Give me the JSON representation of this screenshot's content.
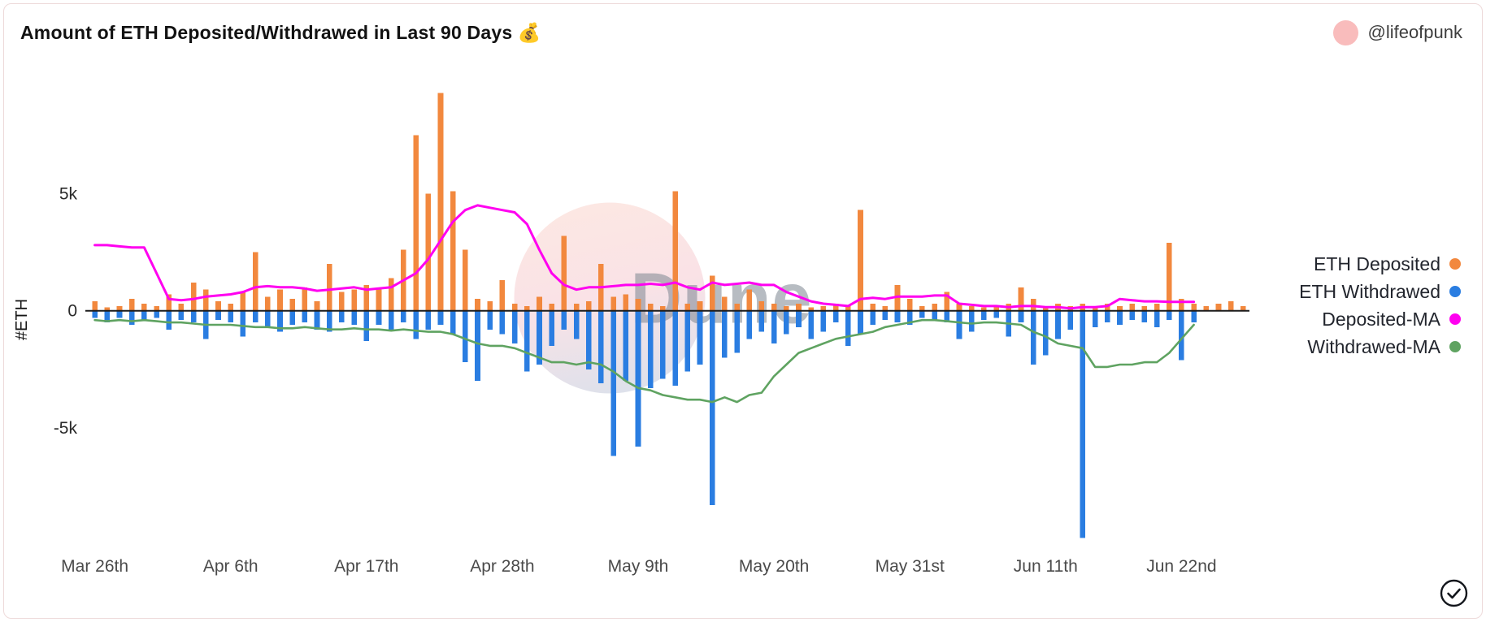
{
  "header": {
    "title": "Amount of ETH Deposited/Withdrawed in Last 90 Days 💰",
    "user_handle": "@lifeofpunk"
  },
  "watermark": {
    "text": "Dune"
  },
  "chart_data": {
    "type": "bar",
    "title": "Amount of ETH Deposited/Withdrawed in Last 90 Days",
    "xlabel": "",
    "ylabel": "#ETH",
    "unit": "ETH",
    "ylim": [
      -10000,
      10600
    ],
    "grid": false,
    "legend_position": "right",
    "y_ticks": [
      {
        "value": 5000,
        "label": "5k"
      },
      {
        "value": 0,
        "label": "0"
      },
      {
        "value": -5000,
        "label": "-5k"
      }
    ],
    "x_ticks": [
      {
        "index": 0,
        "label": "Mar 26th"
      },
      {
        "index": 11,
        "label": "Apr 6th"
      },
      {
        "index": 22,
        "label": "Apr 17th"
      },
      {
        "index": 33,
        "label": "Apr 28th"
      },
      {
        "index": 44,
        "label": "May 9th"
      },
      {
        "index": 55,
        "label": "May 20th"
      },
      {
        "index": 66,
        "label": "May 31st"
      },
      {
        "index": 77,
        "label": "Jun 11th"
      },
      {
        "index": 88,
        "label": "Jun 22nd"
      }
    ],
    "series": [
      {
        "key": "eth-deposited",
        "name": "ETH Deposited",
        "type": "bar",
        "color": "#F2883E",
        "values": [
          400,
          150,
          200,
          500,
          300,
          200,
          700,
          300,
          1200,
          900,
          400,
          300,
          800,
          2500,
          600,
          900,
          500,
          1000,
          400,
          2000,
          800,
          900,
          1100,
          900,
          1400,
          2600,
          7500,
          5000,
          9300,
          5100,
          2600,
          500,
          400,
          1300,
          300,
          200,
          600,
          300,
          3200,
          300,
          400,
          2000,
          600,
          700,
          500,
          300,
          200,
          5100,
          300,
          400,
          1500,
          600,
          300,
          900,
          400,
          300,
          200,
          300,
          150,
          200,
          300,
          200,
          4300,
          300,
          200,
          1100,
          500,
          200,
          300,
          800,
          300,
          200,
          150,
          200,
          300,
          1000,
          500,
          200,
          300,
          200,
          300,
          200,
          300,
          200,
          300,
          200,
          300,
          2900,
          500,
          300,
          200,
          300,
          400,
          200
        ]
      },
      {
        "key": "eth-withdrawed",
        "name": "ETH Withdrawed",
        "type": "bar",
        "color": "#2A7DE1",
        "values": [
          -300,
          -500,
          -300,
          -600,
          -400,
          -300,
          -800,
          -400,
          -500,
          -1200,
          -400,
          -500,
          -1100,
          -500,
          -700,
          -900,
          -600,
          -500,
          -800,
          -900,
          -500,
          -600,
          -1300,
          -600,
          -800,
          -500,
          -1200,
          -800,
          -600,
          -1000,
          -2200,
          -3000,
          -800,
          -1000,
          -1400,
          -2600,
          -2300,
          -1500,
          -800,
          -1200,
          -2500,
          -3100,
          -6200,
          -3000,
          -5800,
          -3300,
          -2900,
          -3200,
          -2600,
          -2300,
          -8300,
          -2000,
          -1800,
          -1200,
          -900,
          -1400,
          -1000,
          -700,
          -1200,
          -900,
          -500,
          -1500,
          -1000,
          -600,
          -400,
          -500,
          -600,
          -300,
          -400,
          -500,
          -1200,
          -900,
          -400,
          -300,
          -1100,
          -500,
          -2300,
          -1900,
          -1200,
          -800,
          -9700,
          -700,
          -500,
          -600,
          -400,
          -500,
          -700,
          -400,
          -2100,
          -500
        ]
      },
      {
        "key": "deposited-ma",
        "name": "Deposited-MA",
        "type": "line",
        "color": "#FF00F0",
        "values": [
          2800,
          2800,
          2750,
          2700,
          2700,
          1600,
          500,
          450,
          500,
          600,
          650,
          700,
          800,
          1000,
          1050,
          1000,
          1000,
          950,
          850,
          900,
          950,
          1000,
          900,
          950,
          1000,
          1300,
          1600,
          2200,
          3000,
          3800,
          4300,
          4500,
          4400,
          4300,
          4200,
          3700,
          2600,
          1600,
          1100,
          900,
          1000,
          1000,
          1050,
          1100,
          1100,
          1150,
          1100,
          1200,
          1000,
          900,
          1200,
          1100,
          1150,
          1200,
          1100,
          1100,
          800,
          600,
          400,
          300,
          250,
          200,
          500,
          550,
          500,
          600,
          600,
          600,
          650,
          650,
          300,
          250,
          200,
          200,
          150,
          200,
          200,
          150,
          150,
          100,
          150,
          150,
          200,
          500,
          450,
          400,
          400,
          380,
          380,
          380
        ]
      },
      {
        "key": "withdrawed-ma",
        "name": "Withdrawed-MA",
        "type": "line",
        "color": "#5FA361",
        "values": [
          -400,
          -450,
          -400,
          -450,
          -400,
          -450,
          -500,
          -500,
          -550,
          -600,
          -600,
          -600,
          -650,
          -700,
          -700,
          -750,
          -750,
          -700,
          -750,
          -800,
          -800,
          -750,
          -800,
          -800,
          -850,
          -800,
          -850,
          -900,
          -900,
          -1000,
          -1200,
          -1400,
          -1500,
          -1500,
          -1600,
          -1800,
          -2000,
          -2200,
          -2200,
          -2300,
          -2200,
          -2300,
          -2600,
          -3000,
          -3300,
          -3400,
          -3600,
          -3700,
          -3800,
          -3800,
          -3900,
          -3700,
          -3900,
          -3600,
          -3500,
          -2800,
          -2300,
          -1800,
          -1600,
          -1400,
          -1200,
          -1100,
          -1000,
          -900,
          -700,
          -600,
          -500,
          -400,
          -400,
          -450,
          -500,
          -550,
          -500,
          -500,
          -550,
          -600,
          -900,
          -1100,
          -1400,
          -1500,
          -1600,
          -2400,
          -2400,
          -2300,
          -2300,
          -2200,
          -2200,
          -1800,
          -1200,
          -600
        ]
      }
    ]
  }
}
